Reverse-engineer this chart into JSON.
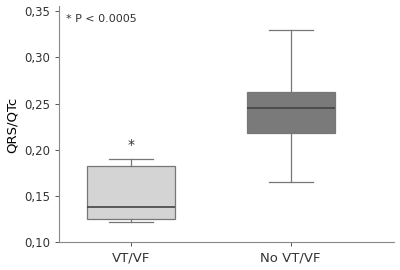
{
  "title": "",
  "ylabel": "QRS/QTc",
  "xlabel": "",
  "categories": [
    "VT/VF",
    "No VT/VF"
  ],
  "box_data": [
    {
      "med": 0.138,
      "q1": 0.125,
      "q3": 0.183,
      "whislo": 0.122,
      "whishi": 0.19,
      "fliers": []
    },
    {
      "med": 0.245,
      "q1": 0.218,
      "q3": 0.263,
      "whislo": 0.165,
      "whishi": 0.33,
      "fliers": []
    }
  ],
  "box_colors": [
    "#d4d4d4",
    "#7a7a7a"
  ],
  "ylim": [
    0.1,
    0.355
  ],
  "yticks": [
    0.1,
    0.15,
    0.2,
    0.25,
    0.3,
    0.35
  ],
  "ytick_labels": [
    "0,10",
    "0,15",
    "0,20",
    "0,25",
    "0,30",
    "0,35"
  ],
  "annotation_text": "* P < 0.0005",
  "star_text": "*",
  "background_color": "#ffffff",
  "box_width": 0.55,
  "median_color": "#444444",
  "whisker_color": "#777777",
  "box_edge_color": "#777777",
  "figsize": [
    4.0,
    2.7
  ],
  "dpi": 100
}
